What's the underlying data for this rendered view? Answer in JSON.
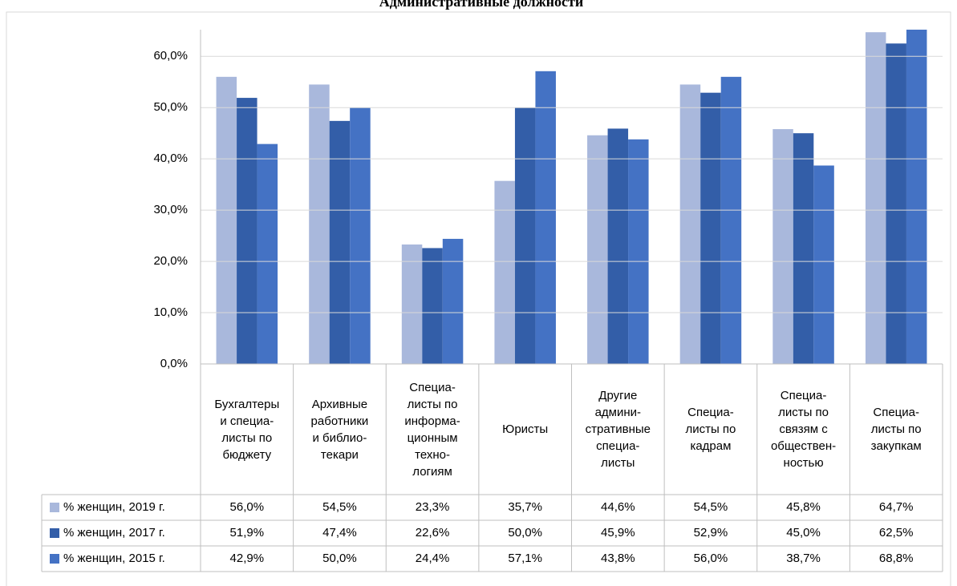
{
  "chart_data": {
    "type": "bar",
    "title": "Административные должности",
    "categories": [
      "Бухгалтеры\nи специа-\nлисты по\nбюджету",
      "Архивные\nработники\nи библио-\nтекари",
      "Специа-\nлисты по\nинформа-\nционным\nтехно-\nлогиям",
      "Юристы",
      "Другие\nадмини-\nстративные\nспециа-\nлисты",
      "Специа-\nлисты по\nкадрам",
      "Специа-\nлисты по\nсвязям с\nобществен-\nностью",
      "Специа-\nлисты по\nзакупкам"
    ],
    "series": [
      {
        "name": "% женщин, 2019 г.",
        "color": "#a9b8dc",
        "values": [
          56.0,
          54.5,
          23.3,
          35.7,
          44.6,
          54.5,
          45.8,
          64.7
        ],
        "value_labels": [
          "56,0%",
          "54,5%",
          "23,3%",
          "35,7%",
          "44,6%",
          "54,5%",
          "45,8%",
          "64,7%"
        ]
      },
      {
        "name": "% женщин, 2017 г.",
        "color": "#335ea8",
        "values": [
          51.9,
          47.4,
          22.6,
          50.0,
          45.9,
          52.9,
          45.0,
          62.5
        ],
        "value_labels": [
          "51,9%",
          "47,4%",
          "22,6%",
          "50,0%",
          "45,9%",
          "52,9%",
          "45,0%",
          "62,5%"
        ]
      },
      {
        "name": "% женщин, 2015 г.",
        "color": "#4472c4",
        "values": [
          42.9,
          50.0,
          24.4,
          57.1,
          43.8,
          56.0,
          38.7,
          68.8
        ],
        "value_labels": [
          "42,9%",
          "50,0%",
          "24,4%",
          "57,1%",
          "43,8%",
          "56,0%",
          "38,7%",
          "68,8%"
        ]
      }
    ],
    "ylim": [
      0,
      65.2
    ],
    "yticks": [
      {
        "value": 0,
        "label": "0,0%"
      },
      {
        "value": 10,
        "label": "10,0%"
      },
      {
        "value": 20,
        "label": "20,0%"
      },
      {
        "value": 30,
        "label": "30,0%"
      },
      {
        "value": 40,
        "label": "40,0%"
      },
      {
        "value": 50,
        "label": "50,0%"
      },
      {
        "value": 60,
        "label": "60,0%"
      }
    ],
    "grid": true
  }
}
